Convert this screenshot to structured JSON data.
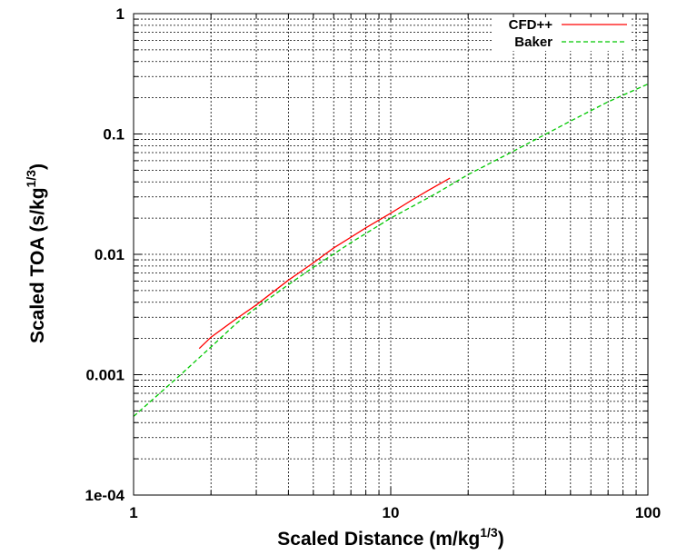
{
  "chart_data": {
    "type": "line",
    "xlabel": "Scaled Distance (m/kg",
    "xlabel_sup": "1/3",
    "xlabel_end": ")",
    "ylabel": "Scaled TOA (s/kg",
    "ylabel_sup": "1/3",
    "ylabel_end": ")",
    "xscale": "log",
    "yscale": "log",
    "xlim": [
      1,
      100
    ],
    "ylim": [
      0.0001,
      1
    ],
    "x_ticks": [
      1,
      10,
      100
    ],
    "x_tick_labels": [
      "1",
      "10",
      "100"
    ],
    "y_ticks": [
      0.0001,
      0.001,
      0.01,
      0.1,
      1
    ],
    "y_tick_labels": [
      "1e-04",
      "0.001",
      "0.01",
      "0.1",
      "1"
    ],
    "grid": true,
    "grid_minor": true,
    "legend_position": "top-right",
    "series": [
      {
        "name": "CFD++",
        "color": "#ff0000",
        "dash": "solid",
        "x": [
          1.8,
          2,
          2.5,
          3,
          4,
          5,
          6,
          8,
          10,
          12,
          14,
          17
        ],
        "y": [
          0.00165,
          0.00205,
          0.0029,
          0.0038,
          0.0061,
          0.0085,
          0.0113,
          0.0166,
          0.022,
          0.028,
          0.034,
          0.043
        ]
      },
      {
        "name": "Baker",
        "color": "#00c800",
        "dash": "dashed",
        "x": [
          1,
          1.5,
          2,
          2.5,
          3,
          4,
          5,
          7,
          10,
          15,
          20,
          30,
          50,
          70,
          100
        ],
        "y": [
          0.00045,
          0.00097,
          0.0017,
          0.00265,
          0.0036,
          0.0056,
          0.0078,
          0.0125,
          0.02,
          0.032,
          0.046,
          0.072,
          0.128,
          0.185,
          0.26
        ]
      }
    ]
  }
}
